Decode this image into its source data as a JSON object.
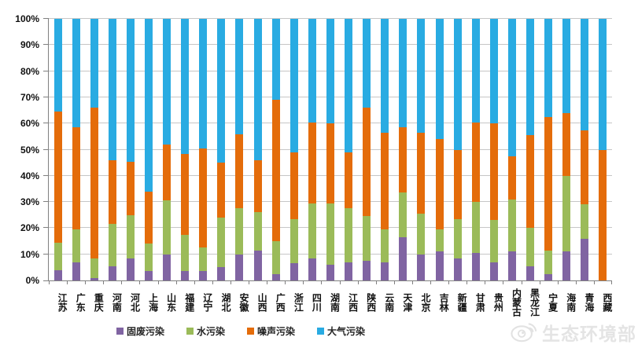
{
  "chart_data": {
    "type": "bar",
    "subtype": "stacked-percent",
    "title": "",
    "xlabel": "",
    "ylabel": "",
    "ylim": [
      0,
      100
    ],
    "grid": true,
    "legend_position": "bottom",
    "yticks": [
      "0%",
      "10%",
      "20%",
      "30%",
      "40%",
      "50%",
      "60%",
      "70%",
      "80%",
      "90%",
      "100%"
    ],
    "categories": [
      "江苏",
      "广东",
      "重庆",
      "河南",
      "河北",
      "上海",
      "山东",
      "福建",
      "辽宁",
      "湖北",
      "安徽",
      "山西",
      "广西",
      "浙江",
      "四川",
      "湖南",
      "江西",
      "陕西",
      "云南",
      "天津",
      "北京",
      "吉林",
      "新疆",
      "甘肃",
      "贵州",
      "内蒙古",
      "黑龙江",
      "宁夏",
      "海南",
      "青海",
      "西藏"
    ],
    "series": [
      {
        "name": "固废污染",
        "color": "#8064A2",
        "values": [
          4,
          7,
          1,
          5.5,
          8.5,
          3.5,
          10,
          3.5,
          3.5,
          5,
          10,
          11.5,
          2.5,
          6.5,
          8.5,
          6,
          7,
          7.5,
          7,
          16.5,
          10,
          11,
          8.5,
          10.5,
          7,
          11,
          5.5,
          2.5,
          11,
          16,
          0
        ]
      },
      {
        "name": "水污染",
        "color": "#9BBB59",
        "values": [
          10.5,
          12.5,
          7.5,
          16,
          16.5,
          10.5,
          20.5,
          14,
          9,
          19,
          17.5,
          14.5,
          12.5,
          17,
          21,
          23.5,
          20.5,
          17,
          12.5,
          17,
          15.5,
          8.5,
          15,
          19.5,
          16,
          20,
          14.5,
          9,
          29,
          13,
          0
        ]
      },
      {
        "name": "噪声污染",
        "color": "#E46C0A",
        "values": [
          50,
          39,
          57.5,
          24.5,
          20.5,
          20,
          21.5,
          31,
          38,
          21,
          28.5,
          20,
          54,
          25.5,
          31,
          30.5,
          21.5,
          41.5,
          37,
          25,
          31,
          34.5,
          26.5,
          30.5,
          37,
          16.5,
          35.5,
          51,
          24,
          28.5,
          50
        ]
      },
      {
        "name": "大气污染",
        "color": "#29ABE2",
        "values": [
          35.5,
          41.5,
          34,
          54,
          54.5,
          66,
          48,
          51.5,
          49.5,
          55,
          44,
          54,
          31,
          51,
          39.5,
          40,
          51,
          34,
          43.5,
          41.5,
          43.5,
          46,
          50,
          39.5,
          40,
          52.5,
          44.5,
          37.5,
          36,
          42.5,
          50
        ]
      }
    ]
  },
  "watermark": {
    "text": "生态环境部",
    "icon": "weibo-icon"
  }
}
